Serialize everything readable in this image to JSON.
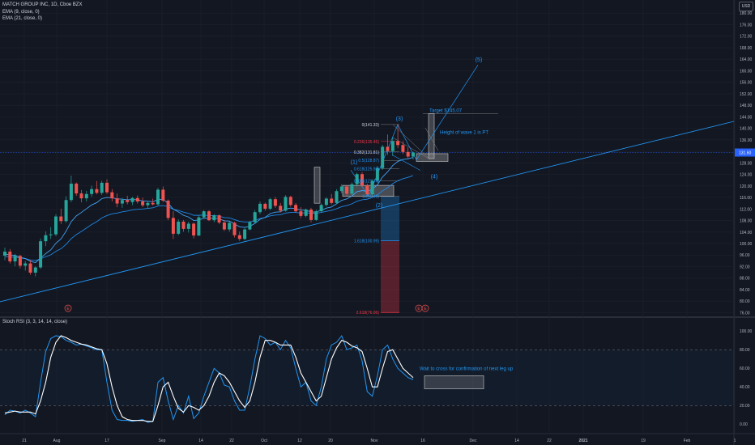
{
  "header": {
    "symbol_line": "MATCH GROUP INC, 1D, Cboe BZX",
    "ema9_label": "EMA (9, close, 0)",
    "ema21_label": "EMA (21, close, 0)",
    "currency": "USD",
    "stoch_label": "Stoch RSI (3, 3, 14, 14, close)"
  },
  "colors": {
    "background": "#131722",
    "up": "#26a69a",
    "down": "#ef5350",
    "ema": "#2196f3",
    "drawing": "#2196f3",
    "fib_red": "#f23645",
    "stoch_k": "#2196f3",
    "stoch_d": "#ffffff",
    "grid": "#1e222d"
  },
  "chart_data": [
    {
      "type": "candlestick",
      "ylim": [
        75,
        184
      ],
      "y_ticks": [
        76,
        80,
        84,
        88,
        92,
        96,
        100,
        104,
        108,
        112,
        116,
        120,
        124,
        128,
        132,
        136,
        140,
        144,
        148,
        152,
        156,
        160,
        164,
        168,
        172,
        176,
        180
      ],
      "last_price_label": "131.60",
      "last_price": 131.6,
      "x_labels": [
        "21",
        "Aug",
        "17",
        "Sep",
        "14",
        "22",
        "Oct",
        "12",
        "20",
        "Nov",
        "16",
        "Dec",
        "14",
        "22",
        "2021",
        "19",
        "Feb",
        "1"
      ],
      "candles_ohlc": [
        [
          95.8,
          98.6,
          94.2,
          97.2
        ],
        [
          97.2,
          98.1,
          93.1,
          93.8
        ],
        [
          93.8,
          96.4,
          92.1,
          95.7
        ],
        [
          95.7,
          96.1,
          91.4,
          92.3
        ],
        [
          92.3,
          93.9,
          90.6,
          93.1
        ],
        [
          93.1,
          94.3,
          89.1,
          89.9
        ],
        [
          89.9,
          92.1,
          88.6,
          91.7
        ],
        [
          91.7,
          101.8,
          91.2,
          100.8
        ],
        [
          100.8,
          104.2,
          99.1,
          102.9
        ],
        [
          102.9,
          105.7,
          101.6,
          103.2
        ],
        [
          103.2,
          110.2,
          102.6,
          109.4
        ],
        [
          109.4,
          112.1,
          106.8,
          107.8
        ],
        [
          107.8,
          116.4,
          107.2,
          115.1
        ],
        [
          115.1,
          123.6,
          114.4,
          120.8
        ],
        [
          120.8,
          121.2,
          116.6,
          117.4
        ],
        [
          117.4,
          118.6,
          114.3,
          115.7
        ],
        [
          115.7,
          118.3,
          114.6,
          117.2
        ],
        [
          117.2,
          120.1,
          116.2,
          118.9
        ],
        [
          118.9,
          121.7,
          117.1,
          117.6
        ],
        [
          117.6,
          121.8,
          116.9,
          121.1
        ],
        [
          121.1,
          122.3,
          117.2,
          117.8
        ],
        [
          117.8,
          118.9,
          114.6,
          115.7
        ],
        [
          115.7,
          117.4,
          112.6,
          113.9
        ],
        [
          113.9,
          115.8,
          112.4,
          115.1
        ],
        [
          115.1,
          116.6,
          113.6,
          114.4
        ],
        [
          114.4,
          116.2,
          113.3,
          115.8
        ],
        [
          115.8,
          116.7,
          113.9,
          114.6
        ],
        [
          114.6,
          115.9,
          112.6,
          113.3
        ],
        [
          113.3,
          114.8,
          112.1,
          114.1
        ],
        [
          114.1,
          115.6,
          113.2,
          113.6
        ],
        [
          113.6,
          119.4,
          113.2,
          118.7
        ],
        [
          118.7,
          119.8,
          114.4,
          114.9
        ],
        [
          114.9,
          115.3,
          108.1,
          108.9
        ],
        [
          108.9,
          111.2,
          101.6,
          103.4
        ],
        [
          103.4,
          108.4,
          102.9,
          107.6
        ],
        [
          107.6,
          108.2,
          104.1,
          105.1
        ],
        [
          105.1,
          107.6,
          103.8,
          106.9
        ],
        [
          106.9,
          107.3,
          101.8,
          102.8
        ],
        [
          102.8,
          109.8,
          102.6,
          109.1
        ],
        [
          109.1,
          111.6,
          108.6,
          111.2
        ],
        [
          111.2,
          111.6,
          107.8,
          108.1
        ],
        [
          108.1,
          110.2,
          107.4,
          109.8
        ],
        [
          109.8,
          110.1,
          106.7,
          107.3
        ],
        [
          107.3,
          108.2,
          104.4,
          104.9
        ],
        [
          104.9,
          107.9,
          104.1,
          107.2
        ],
        [
          107.2,
          107.6,
          102.1,
          102.9
        ],
        [
          102.9,
          104.2,
          100.9,
          101.6
        ],
        [
          101.6,
          105.6,
          101.1,
          104.9
        ],
        [
          104.9,
          107.8,
          104.6,
          107.4
        ],
        [
          107.4,
          111.6,
          107.1,
          110.9
        ],
        [
          110.9,
          114.6,
          110.2,
          113.8
        ],
        [
          113.8,
          114.2,
          111.4,
          112.1
        ],
        [
          112.1,
          115.9,
          111.6,
          115.4
        ],
        [
          115.4,
          116.2,
          112.4,
          113.1
        ],
        [
          113.1,
          114.1,
          110.8,
          111.4
        ],
        [
          111.4,
          116.8,
          111.1,
          116.2
        ],
        [
          116.2,
          116.6,
          112.8,
          113.4
        ],
        [
          113.4,
          114.1,
          110.7,
          111.2
        ],
        [
          111.2,
          112.6,
          108.9,
          109.6
        ],
        [
          109.6,
          112.2,
          109.1,
          111.8
        ],
        [
          111.8,
          112.4,
          107.4,
          108.2
        ],
        [
          108.2,
          111.7,
          107.9,
          111.2
        ],
        [
          111.2,
          113.9,
          110.8,
          113.4
        ],
        [
          113.4,
          116.1,
          112.9,
          115.6
        ],
        [
          115.6,
          117.2,
          113.6,
          114.1
        ],
        [
          114.1,
          118.9,
          113.8,
          118.2
        ],
        [
          118.2,
          120.6,
          117.4,
          119.8
        ],
        [
          119.8,
          120.2,
          116.6,
          117.3
        ],
        [
          117.3,
          121.2,
          116.8,
          120.6
        ],
        [
          120.6,
          124.6,
          119.8,
          124.1
        ],
        [
          124.1,
          124.8,
          119.6,
          120.2
        ],
        [
          120.2,
          120.8,
          116.6,
          117.1
        ],
        [
          117.1,
          122.3,
          116.6,
          121.8
        ],
        [
          121.8,
          126.9,
          121.1,
          126.2
        ],
        [
          126.2,
          134.3,
          125.6,
          133.6
        ],
        [
          133.6,
          137.9,
          130.8,
          132.1
        ],
        [
          132.1,
          136.8,
          130.4,
          135.6
        ],
        [
          135.6,
          141.3,
          133.2,
          134.2
        ],
        [
          134.2,
          135.6,
          131.1,
          131.8
        ],
        [
          131.8,
          133.4,
          129.6,
          130.2
        ],
        [
          130.2,
          131.9,
          129.1,
          131.6
        ]
      ],
      "ema9": [
        96.4,
        96.0,
        95.9,
        95.2,
        94.8,
        93.8,
        93.4,
        94.9,
        96.5,
        97.8,
        100.1,
        101.6,
        104.3,
        107.6,
        109.6,
        110.8,
        112.1,
        113.4,
        114.2,
        115.6,
        116.0,
        115.9,
        115.5,
        115.4,
        115.2,
        115.3,
        115.2,
        114.8,
        114.7,
        114.5,
        115.3,
        115.3,
        114.0,
        111.9,
        111.0,
        109.8,
        109.2,
        108.0,
        108.2,
        108.8,
        108.7,
        108.9,
        108.6,
        107.9,
        107.8,
        106.8,
        105.8,
        105.6,
        106.0,
        107.0,
        108.4,
        109.1,
        110.4,
        110.9,
        111.0,
        112.0,
        112.3,
        112.1,
        111.6,
        111.6,
        110.9,
        111.0,
        111.5,
        112.3,
        112.7,
        113.8,
        115.0,
        115.5,
        116.5,
        118.0,
        118.4,
        118.1,
        118.9,
        120.4,
        123.1,
        124.9,
        127.1,
        128.5,
        129.2,
        129.4,
        129.9
      ],
      "ema21": [
        95.5,
        95.3,
        95.3,
        95.0,
        94.8,
        94.3,
        94.1,
        94.7,
        95.4,
        96.1,
        97.3,
        98.2,
        99.7,
        101.7,
        103.1,
        104.2,
        105.4,
        106.6,
        107.6,
        108.9,
        109.7,
        110.3,
        110.6,
        111.0,
        111.3,
        111.7,
        111.9,
        112.0,
        112.2,
        112.4,
        113.0,
        113.2,
        112.8,
        111.9,
        111.5,
        110.9,
        110.5,
        109.8,
        109.8,
        109.9,
        109.7,
        109.7,
        109.5,
        109.0,
        108.9,
        108.3,
        107.7,
        107.5,
        107.5,
        108.0,
        108.7,
        109.0,
        109.6,
        109.9,
        110.0,
        110.6,
        110.8,
        110.8,
        110.6,
        110.7,
        110.5,
        110.5,
        110.8,
        111.2,
        111.5,
        112.1,
        112.8,
        113.2,
        113.8,
        114.7,
        115.2,
        115.4,
        116.0,
        116.9,
        118.3,
        119.4,
        120.8,
        121.8,
        122.5,
        123.0,
        123.6
      ],
      "annotations": {
        "fib_labels": [
          "0(141.33)",
          "0.236(135.45)",
          "0.382(131.81)",
          "0.5(128.87)",
          "0.618(125.93)",
          "0.786(121.74)",
          "1(116.41)",
          "1.618(100.99)",
          "2.618(76.06)"
        ],
        "wave_labels": [
          "(1)",
          "(2)",
          "(3)",
          "(4)",
          "(5)"
        ],
        "target_text": "Target $145.07",
        "wave_note": "Height of wave 1 is PT",
        "earnings_marker": "E"
      }
    },
    {
      "type": "line",
      "title": "Stoch RSI (3, 3, 14, 14, close)",
      "ylim": [
        -5,
        108
      ],
      "y_ticks": [
        0,
        20,
        40,
        60,
        80,
        100
      ],
      "y_tick_labels": [
        "0.00",
        "20.00",
        "40.00",
        "60.00",
        "80.00",
        "100.00"
      ],
      "bands": [
        20,
        80
      ],
      "series": [
        {
          "values": [
            10,
            15,
            14,
            12,
            15,
            12,
            8,
            45,
            78,
            92,
            95,
            94,
            90,
            88,
            85,
            86,
            84,
            82,
            80,
            80,
            45,
            15,
            5,
            4,
            4,
            3,
            4,
            5,
            2,
            3,
            45,
            50,
            25,
            5,
            20,
            12,
            30,
            6,
            12,
            30,
            45,
            60,
            55,
            42,
            40,
            25,
            15,
            15,
            40,
            70,
            95,
            92,
            85,
            88,
            80,
            90,
            82,
            60,
            40,
            45,
            25,
            20,
            40,
            70,
            85,
            88,
            95,
            80,
            82,
            85,
            68,
            35,
            30,
            52,
            80,
            85,
            70,
            60,
            55,
            50,
            48
          ]
        },
        {
          "values": [
            12,
            13,
            14,
            13,
            13,
            13,
            11,
            25,
            45,
            72,
            88,
            95,
            93,
            90,
            88,
            86,
            85,
            83,
            81,
            80,
            65,
            40,
            20,
            8,
            5,
            4,
            4,
            4,
            3,
            3,
            20,
            40,
            45,
            30,
            17,
            13,
            20,
            18,
            15,
            20,
            30,
            45,
            55,
            52,
            45,
            35,
            25,
            18,
            25,
            45,
            72,
            90,
            90,
            88,
            85,
            85,
            85,
            72,
            55,
            45,
            35,
            25,
            30,
            50,
            70,
            82,
            90,
            88,
            84,
            82,
            78,
            60,
            40,
            40,
            60,
            78,
            80,
            70,
            60,
            55,
            50
          ]
        }
      ]
    }
  ]
}
